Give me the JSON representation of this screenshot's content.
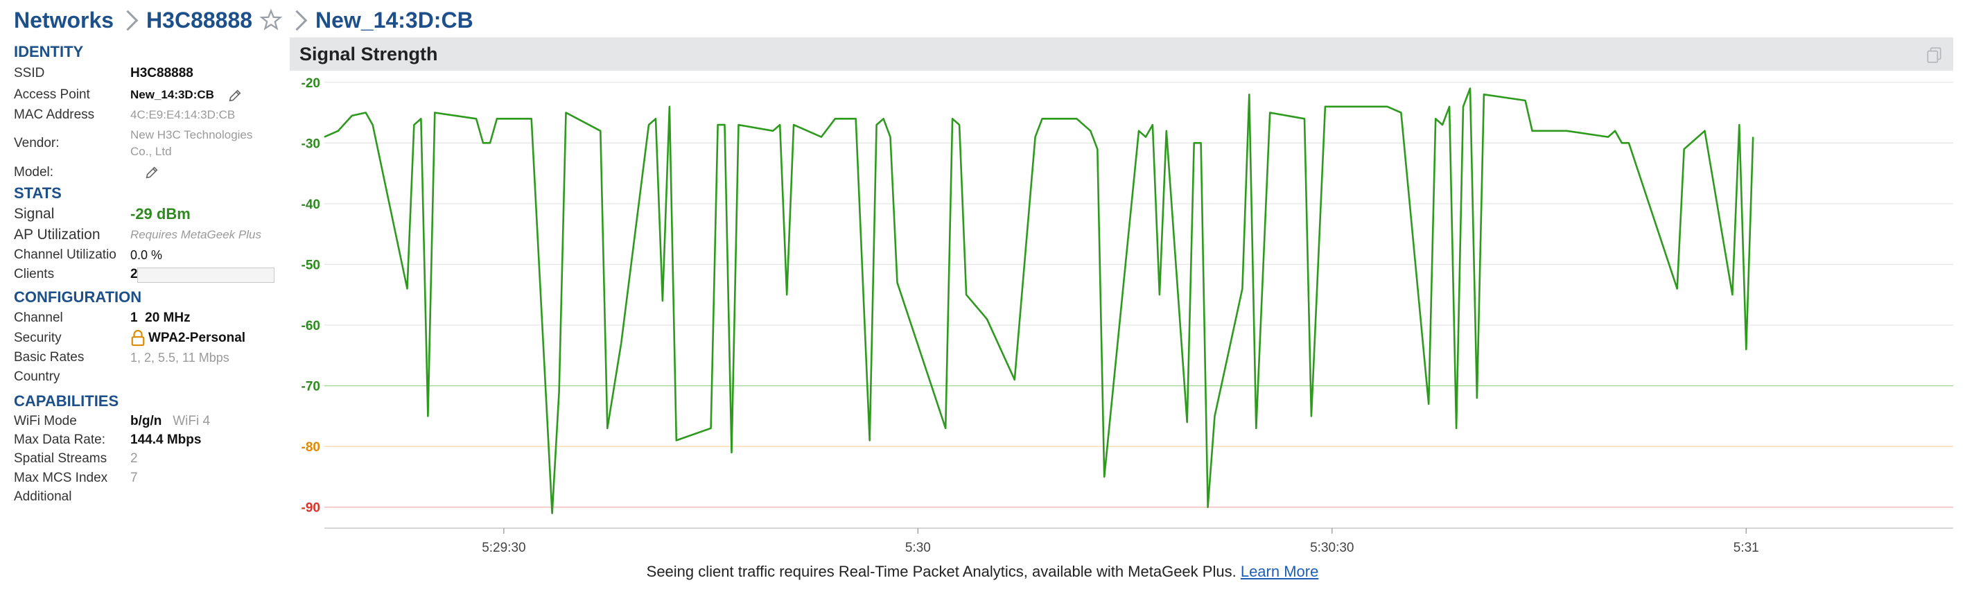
{
  "breadcrumb": {
    "root": "Networks",
    "network": "H3C88888",
    "access_point": "New_14:3D:CB"
  },
  "sections": {
    "identity": "IDENTITY",
    "stats": "STATS",
    "configuration": "CONFIGURATION",
    "capabilities": "CAPABILITIES"
  },
  "identity": {
    "ssid_label": "SSID",
    "ssid": "H3C88888",
    "ap_label": "Access Point",
    "ap": "New_14:3D:CB",
    "mac_label": "MAC Address",
    "mac": "4C:E9:E4:14:3D:CB",
    "vendor_label": "Vendor:",
    "vendor_line1": "New H3C Technologies",
    "vendor_line2": "Co., Ltd",
    "model_label": "Model:"
  },
  "stats": {
    "signal_label": "Signal",
    "signal": "-29 dBm",
    "ap_util_label": "AP Utilization",
    "ap_util": "Requires MetaGeek Plus",
    "channel_util_label": "Channel Utilizatio",
    "channel_util": "0.0 %",
    "channel_util_fraction": 0.0,
    "clients_label": "Clients",
    "clients": "2"
  },
  "configuration": {
    "channel_label": "Channel",
    "channel": "1",
    "channel_width": "20 MHz",
    "security_label": "Security",
    "security": "WPA2-Personal",
    "basic_rates_label": "Basic Rates",
    "basic_rates": "1, 2, 5.5, 11 Mbps",
    "country_label": "Country",
    "country": ""
  },
  "capabilities": {
    "wifi_mode_label": "WiFi Mode",
    "wifi_mode": "b/g/n",
    "wifi_gen": "WiFi 4",
    "max_rate_label": "Max Data Rate:",
    "max_rate": "144.4 Mbps",
    "streams_label": "Spatial Streams",
    "streams": "2",
    "mcs_label": "Max MCS Index",
    "mcs": "7",
    "additional_label": "Additional",
    "additional": ""
  },
  "icons": {
    "star": "star-icon",
    "edit": "pencil-icon",
    "lock": "lock-icon",
    "copy": "copy-icon"
  },
  "colors": {
    "accent": "#1d4f8a",
    "signal_line": "#2d9a1e",
    "good": "#2d8a1e",
    "warn": "#e08a00",
    "bad": "#d9342b"
  },
  "chart_data": {
    "type": "line",
    "title": "Signal Strength",
    "ylim": [
      -93,
      -19
    ],
    "yticks": [
      {
        "value": -20,
        "label": "-20",
        "color": "#2d8a1e"
      },
      {
        "value": -30,
        "label": "-30",
        "color": "#2d8a1e"
      },
      {
        "value": -40,
        "label": "-40",
        "color": "#2d8a1e"
      },
      {
        "value": -50,
        "label": "-50",
        "color": "#2d8a1e"
      },
      {
        "value": -60,
        "label": "-60",
        "color": "#2d8a1e"
      },
      {
        "value": -70,
        "label": "-70",
        "color": "#2d8a1e"
      },
      {
        "value": -80,
        "label": "-80",
        "color": "#e08a00"
      },
      {
        "value": -90,
        "label": "-90",
        "color": "#d9342b"
      }
    ],
    "xlim": [
      -26,
      210
    ],
    "xticks": [
      {
        "value": 0,
        "label": "5:29:30"
      },
      {
        "value": 60,
        "label": "5:30"
      },
      {
        "value": 120,
        "label": "5:30:30"
      },
      {
        "value": 180,
        "label": "5:31"
      }
    ],
    "series": [
      {
        "points": [
          [
            -26,
            -29
          ],
          [
            -24,
            -28
          ],
          [
            -22,
            -25.5
          ],
          [
            -20,
            -25
          ],
          [
            -19,
            -27
          ],
          [
            -14,
            -54
          ],
          [
            -13,
            -27
          ],
          [
            -12,
            -26
          ],
          [
            -11,
            -75
          ],
          [
            -10,
            -25
          ],
          [
            -4,
            -26
          ],
          [
            -3,
            -30
          ],
          [
            -2,
            -30
          ],
          [
            -1,
            -26
          ],
          [
            4,
            -26
          ],
          [
            7,
            -91
          ],
          [
            8,
            -71
          ],
          [
            9,
            -25
          ],
          [
            14,
            -28
          ],
          [
            15,
            -77
          ],
          [
            17,
            -63
          ],
          [
            21,
            -27
          ],
          [
            22,
            -26
          ],
          [
            23,
            -56
          ],
          [
            24,
            -24
          ],
          [
            25,
            -79
          ],
          [
            30,
            -77
          ],
          [
            31,
            -27
          ],
          [
            32,
            -27
          ],
          [
            33,
            -81
          ],
          [
            34,
            -27
          ],
          [
            39,
            -28
          ],
          [
            40,
            -27
          ],
          [
            41,
            -55
          ],
          [
            42,
            -27
          ],
          [
            46,
            -29
          ],
          [
            48,
            -26
          ],
          [
            51,
            -26
          ],
          [
            53,
            -79
          ],
          [
            54,
            -27
          ],
          [
            55,
            -26
          ],
          [
            56,
            -29
          ],
          [
            57,
            -53
          ],
          [
            64,
            -77
          ],
          [
            65,
            -26
          ],
          [
            66,
            -27
          ],
          [
            67,
            -55
          ],
          [
            70,
            -59
          ],
          [
            74,
            -69
          ],
          [
            77,
            -29
          ],
          [
            78,
            -26
          ],
          [
            83,
            -26
          ],
          [
            85,
            -28
          ],
          [
            86,
            -31
          ],
          [
            87,
            -85
          ],
          [
            92,
            -28
          ],
          [
            93,
            -29
          ],
          [
            94,
            -27
          ],
          [
            95,
            -55
          ],
          [
            96,
            -28
          ],
          [
            99,
            -76
          ],
          [
            100,
            -30
          ],
          [
            101,
            -30
          ],
          [
            102,
            -90
          ],
          [
            103,
            -75
          ],
          [
            107,
            -54
          ],
          [
            108,
            -22
          ],
          [
            109,
            -77
          ],
          [
            111,
            -25
          ],
          [
            116,
            -26
          ],
          [
            117,
            -75
          ],
          [
            119,
            -24
          ],
          [
            128,
            -24
          ],
          [
            130,
            -25
          ],
          [
            134,
            -73
          ],
          [
            135,
            -26
          ],
          [
            136,
            -27
          ],
          [
            137,
            -24
          ],
          [
            138,
            -77
          ],
          [
            139,
            -24
          ],
          [
            140,
            -21
          ],
          [
            141,
            -72
          ],
          [
            142,
            -22
          ],
          [
            148,
            -23
          ],
          [
            149,
            -28
          ],
          [
            154,
            -28
          ],
          [
            160,
            -29
          ],
          [
            161,
            -28
          ],
          [
            162,
            -30
          ],
          [
            163,
            -30
          ],
          [
            170,
            -54
          ],
          [
            171,
            -31
          ],
          [
            174,
            -28
          ],
          [
            178,
            -55
          ],
          [
            179,
            -27
          ],
          [
            180,
            -64
          ],
          [
            181,
            -29
          ]
        ]
      }
    ]
  },
  "footer": {
    "text": "Seeing client traffic requires Real-Time Packet Analytics, available with MetaGeek Plus.",
    "link": "Learn More"
  }
}
